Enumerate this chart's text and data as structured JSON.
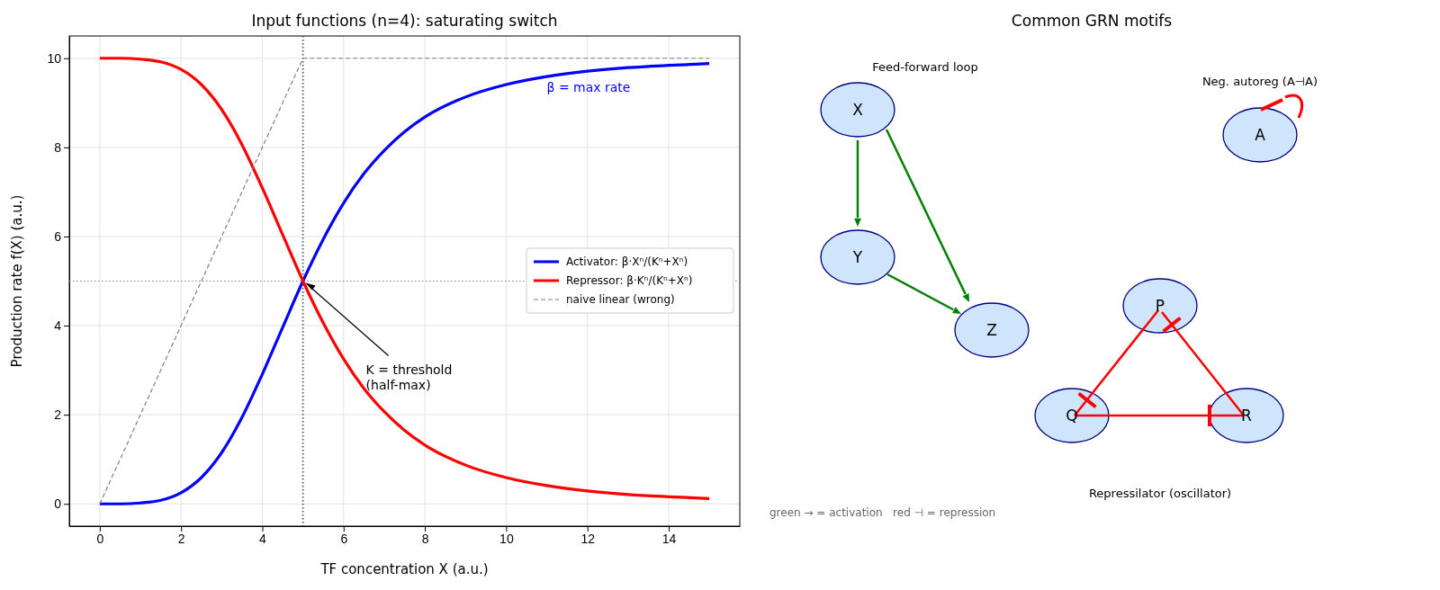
{
  "chart_data": [
    {
      "type": "line",
      "title": "Input functions (n=4): saturating switch",
      "xlabel": "TF concentration X (a.u.)",
      "ylabel": "Production rate f(X) (a.u.)",
      "xlim": [
        -0.75,
        15.75
      ],
      "ylim": [
        -0.5,
        10.5
      ],
      "xticks": [
        0,
        2,
        4,
        6,
        8,
        10,
        12,
        14
      ],
      "yticks": [
        0,
        2,
        4,
        6,
        8,
        10
      ],
      "grid": true,
      "legend": "right",
      "marker": "none",
      "x": [
        0,
        0.5,
        1,
        1.5,
        2,
        2.5,
        3,
        3.5,
        4,
        4.5,
        5,
        5.5,
        6,
        6.5,
        7,
        7.5,
        8,
        9,
        10,
        11,
        12,
        13,
        14,
        15
      ],
      "series": [
        {
          "name": "Activator: β·Xⁿ/(Kⁿ+Xⁿ)",
          "color": "#0000ff",
          "line_style": "solid",
          "values": [
            0,
            0,
            0.02,
            0.08,
            0.25,
            0.59,
            1.15,
            1.94,
            2.91,
            3.96,
            5,
            5.94,
            6.75,
            7.41,
            7.93,
            8.35,
            8.68,
            9.13,
            9.41,
            9.59,
            9.71,
            9.79,
            9.84,
            9.88
          ]
        },
        {
          "name": "Repressor: β·Kⁿ/(Kⁿ+Xⁿ)",
          "color": "#ff0000",
          "line_style": "solid",
          "values": [
            10,
            10,
            9.98,
            9.92,
            9.75,
            9.41,
            8.85,
            8.06,
            7.09,
            6.04,
            5,
            4.06,
            3.25,
            2.59,
            2.07,
            1.65,
            1.32,
            0.87,
            0.59,
            0.41,
            0.29,
            0.21,
            0.16,
            0.12
          ]
        },
        {
          "name": "naive linear (wrong)",
          "color": "#808080",
          "line_style": "dashed",
          "x": [
            0,
            5,
            15
          ],
          "values": [
            0,
            10,
            10
          ]
        }
      ],
      "ref_lines": [
        {
          "axis": "x",
          "value": 5,
          "color": "#555555",
          "line_style": "dotted"
        },
        {
          "axis": "y",
          "value": 5,
          "color": "#888888",
          "line_style": "dotted"
        }
      ],
      "annotations": [
        "β = max rate",
        {
          "text": "K = threshold\n(half-max)",
          "x": 5,
          "y": 5
        }
      ]
    },
    {
      "type": "other",
      "title": "Common GRN motifs",
      "annotations": [
        "Feed-forward loop",
        "Neg. autoreg (A⊣A)",
        "Repressilator (oscillator)",
        "green → = activation   red ⊣ = repression",
        "X",
        "Y",
        "Z",
        "A",
        "P",
        "Q",
        "R"
      ]
    }
  ]
}
